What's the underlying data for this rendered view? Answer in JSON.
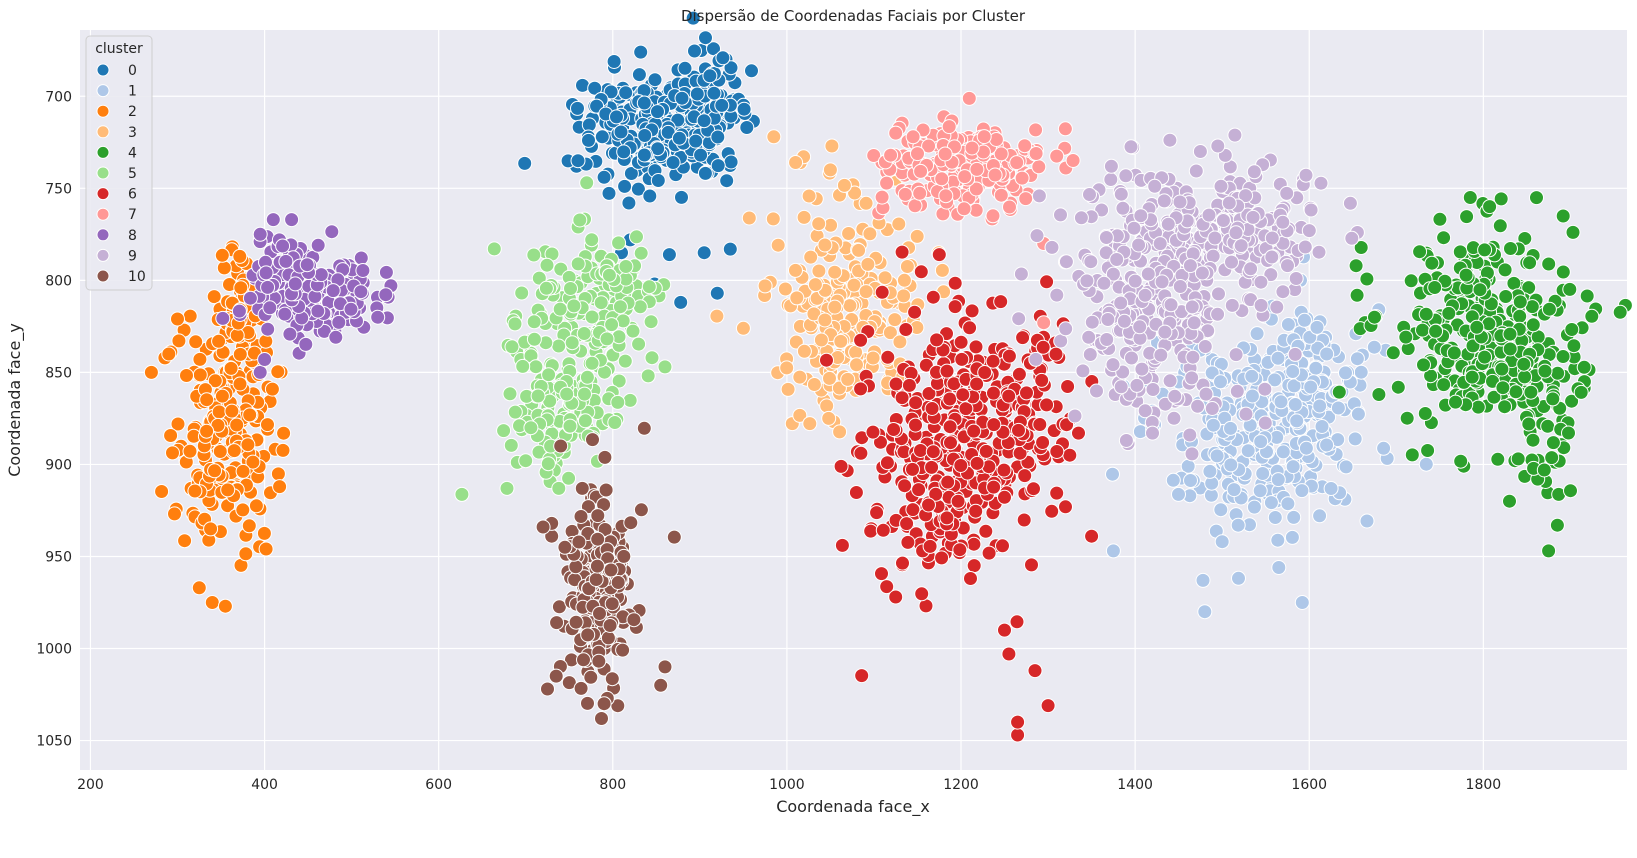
{
  "chart_data": {
    "type": "scatter",
    "title": "Dispersão de Coordenadas Faciais por Cluster",
    "xlabel": "Coordenada face_x",
    "ylabel": "Coordenada face_y",
    "xlim": [
      188,
      1965
    ],
    "ylim": [
      1066,
      664
    ],
    "y_inverted": true,
    "x_ticks": [
      200,
      400,
      600,
      800,
      1000,
      1200,
      1400,
      1600,
      1800
    ],
    "y_ticks": [
      700,
      750,
      800,
      850,
      900,
      950,
      1000,
      1050
    ],
    "grid": true,
    "background": "#eaeaf2",
    "legend": {
      "title": "cluster",
      "placement": "top-left"
    },
    "series": [
      {
        "name": "0",
        "color": "#1f77b4",
        "clusters": [
          {
            "cx": 845,
            "cy": 718,
            "sx": 42,
            "sy": 16,
            "n": 240
          },
          {
            "cx": 915,
            "cy": 705,
            "sx": 22,
            "sy": 14,
            "n": 70
          }
        ],
        "points": [
          [
            920,
            807
          ],
          [
            878,
            812
          ],
          [
            848,
            802
          ],
          [
            810,
            785
          ],
          [
            905,
            785
          ],
          [
            935,
            783
          ],
          [
            820,
            778
          ],
          [
            865,
            786
          ],
          [
            760,
            735
          ],
          [
            790,
            744
          ]
        ]
      },
      {
        "name": "1",
        "color": "#aec7e8",
        "clusters": [
          {
            "cx": 1545,
            "cy": 880,
            "sx": 60,
            "sy": 25,
            "n": 300
          },
          {
            "cx": 1600,
            "cy": 850,
            "sx": 35,
            "sy": 22,
            "n": 90
          }
        ],
        "points": [
          [
            1480,
            980
          ],
          [
            1478,
            963
          ],
          [
            1592,
            975
          ],
          [
            1565,
            956
          ],
          [
            1500,
            942
          ],
          [
            1375,
            947
          ],
          [
            1620,
            840
          ],
          [
            1590,
            800
          ]
        ]
      },
      {
        "name": "2",
        "color": "#ff7f0e",
        "clusters": [
          {
            "cx": 355,
            "cy": 880,
            "sx": 28,
            "sy": 32,
            "n": 230
          },
          {
            "cx": 370,
            "cy": 815,
            "sx": 12,
            "sy": 15,
            "n": 50
          }
        ],
        "points": [
          [
            270,
            850
          ],
          [
            290,
            840
          ],
          [
            300,
            821
          ],
          [
            340,
            975
          ],
          [
            355,
            977
          ],
          [
            325,
            967
          ],
          [
            338,
            935
          ]
        ]
      },
      {
        "name": "3",
        "color": "#ffbb78",
        "clusters": [
          {
            "cx": 1070,
            "cy": 815,
            "sx": 40,
            "sy": 28,
            "n": 230
          }
        ],
        "points": [
          [
            985,
            722
          ],
          [
            1010,
            736
          ],
          [
            975,
            803
          ],
          [
            1050,
            740
          ],
          [
            1048,
            875
          ],
          [
            1135,
            800
          ],
          [
            1125,
            745
          ]
        ]
      },
      {
        "name": "4",
        "color": "#2ca02c",
        "clusters": [
          {
            "cx": 1800,
            "cy": 825,
            "sx": 55,
            "sy": 28,
            "n": 300
          },
          {
            "cx": 1860,
            "cy": 870,
            "sx": 20,
            "sy": 22,
            "n": 50
          }
        ],
        "points": [
          [
            1785,
            755
          ],
          [
            1875,
            947
          ],
          [
            1885,
            933
          ],
          [
            1830,
            920
          ],
          [
            1870,
            903
          ],
          [
            1840,
            897
          ],
          [
            1675,
            820
          ],
          [
            1680,
            862
          ]
        ]
      },
      {
        "name": "5",
        "color": "#98df8a",
        "clusters": [
          {
            "cx": 780,
            "cy": 810,
            "sx": 35,
            "sy": 18,
            "n": 150
          },
          {
            "cx": 745,
            "cy": 870,
            "sx": 35,
            "sy": 22,
            "n": 150
          }
        ],
        "points": [
          [
            770,
            747
          ],
          [
            710,
            832
          ],
          [
            700,
            898
          ],
          [
            738,
            913
          ],
          [
            860,
            847
          ],
          [
            845,
            842
          ]
        ]
      },
      {
        "name": "6",
        "color": "#d62728",
        "clusters": [
          {
            "cx": 1185,
            "cy": 890,
            "sx": 50,
            "sy": 35,
            "n": 380
          },
          {
            "cx": 1270,
            "cy": 865,
            "sx": 30,
            "sy": 25,
            "n": 60
          }
        ],
        "points": [
          [
            1265,
            1047
          ],
          [
            1265,
            1040
          ],
          [
            1300,
            1031
          ],
          [
            1285,
            1012
          ],
          [
            1255,
            1003
          ],
          [
            1250,
            990
          ],
          [
            1125,
            972
          ],
          [
            1350,
            939
          ],
          [
            1320,
            923
          ],
          [
            1325,
            895
          ],
          [
            1335,
            883
          ],
          [
            1310,
            893
          ]
        ]
      },
      {
        "name": "7",
        "color": "#ff9896",
        "clusters": [
          {
            "cx": 1205,
            "cy": 738,
            "sx": 48,
            "sy": 12,
            "n": 230
          }
        ],
        "points": [
          [
            1125,
            720
          ],
          [
            1145,
            722
          ],
          [
            1295,
            780
          ],
          [
            1320,
            790
          ],
          [
            1295,
            823
          ]
        ]
      },
      {
        "name": "8",
        "color": "#9467bd",
        "clusters": [
          {
            "cx": 455,
            "cy": 810,
            "sx": 35,
            "sy": 12,
            "n": 150
          },
          {
            "cx": 420,
            "cy": 792,
            "sx": 18,
            "sy": 8,
            "n": 40
          }
        ],
        "points": [
          [
            410,
            767
          ],
          [
            395,
            775
          ],
          [
            530,
            820
          ],
          [
            395,
            850
          ],
          [
            400,
            843
          ]
        ]
      },
      {
        "name": "9",
        "color": "#c5b0d5",
        "clusters": [
          {
            "cx": 1490,
            "cy": 770,
            "sx": 70,
            "sy": 18,
            "n": 260
          },
          {
            "cx": 1420,
            "cy": 825,
            "sx": 55,
            "sy": 25,
            "n": 220
          }
        ],
        "points": [
          [
            1495,
            727
          ],
          [
            1475,
            730
          ],
          [
            1390,
            887
          ],
          [
            1420,
            883
          ],
          [
            1310,
            808
          ],
          [
            1575,
            792
          ]
        ]
      },
      {
        "name": "10",
        "color": "#8c564b",
        "clusters": [
          {
            "cx": 785,
            "cy": 965,
            "sx": 20,
            "sy": 28,
            "n": 200
          }
        ],
        "points": [
          [
            725,
            1022
          ],
          [
            735,
            1015
          ],
          [
            790,
            1030
          ],
          [
            855,
            1020
          ],
          [
            860,
            1010
          ],
          [
            765,
            913
          ],
          [
            720,
            934
          ],
          [
            745,
            945
          ]
        ]
      }
    ]
  }
}
